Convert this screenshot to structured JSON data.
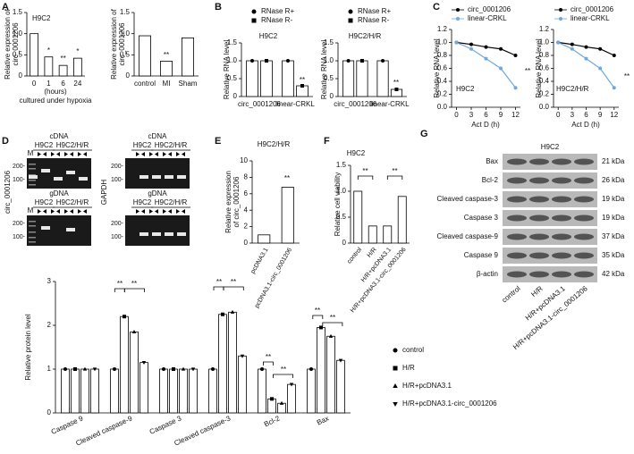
{
  "chart_data": [
    {
      "type": "bar",
      "panel": "A",
      "title": "H9C2",
      "ylabel": [
        "Relative expression of",
        "circ_0001206"
      ],
      "xlabel": [
        "(hours)",
        "cultured under hypoxia"
      ],
      "categories": [
        "0",
        "1",
        "6",
        "24"
      ],
      "values": [
        1.0,
        0.45,
        0.25,
        0.42
      ],
      "color": "#ffffff",
      "ylim": [
        0,
        1.5
      ],
      "yticks": [
        0,
        0.5,
        {
          "value": 1,
          "label": "1.0"
        },
        1.5
      ],
      "annotations": [
        "*",
        "**",
        "*"
      ]
    },
    {
      "type": "bar",
      "ylabel": [
        "Relative expression of",
        "circ_0001206"
      ],
      "categories": [
        "control",
        "MI",
        "Sham"
      ],
      "values": [
        0.95,
        0.35,
        0.9
      ],
      "color": "#ffffff",
      "ylim": [
        0,
        1.5
      ],
      "yticks": [
        0,
        0.5,
        {
          "value": 1,
          "label": "1.0"
        },
        1.5
      ],
      "annotations": [
        "**"
      ]
    },
    {
      "type": "bar",
      "panel": "B",
      "title": "H9C2",
      "ylabel": [
        "Relative RNA level"
      ],
      "categories": [
        "circ_0001206",
        "linear-CRKL"
      ],
      "series": [
        {
          "name": "RNase R+",
          "color": "#ffffff",
          "marker": "circle",
          "values": [
            1.0,
            1.0
          ]
        },
        {
          "name": "RNase R-",
          "color": "#ffffff",
          "marker": "square",
          "values": [
            1.0,
            0.3
          ]
        }
      ],
      "ylim": [
        0,
        1.5
      ],
      "yticks": [
        0,
        0.5,
        {
          "value": 1,
          "label": "1.0"
        },
        1.5
      ],
      "annotations": [
        "**"
      ]
    },
    {
      "type": "bar",
      "title": "H9C2/H/R",
      "ylabel": [
        "Relative RNA level"
      ],
      "categories": [
        "circ_0001206",
        "linear-CRKL"
      ],
      "series": [
        {
          "name": "RNase R+",
          "color": "#ffffff",
          "marker": "circle",
          "values": [
            1.0,
            1.0
          ]
        },
        {
          "name": "RNase R-",
          "color": "#ffffff",
          "marker": "square",
          "values": [
            1.0,
            0.2
          ]
        }
      ],
      "ylim": [
        0,
        1.5
      ],
      "yticks": [
        0,
        0.5,
        {
          "value": 1,
          "label": "1.0"
        },
        1.5
      ],
      "annotations": [
        "**"
      ]
    },
    {
      "type": "line",
      "panel": "C",
      "title": "H9C2",
      "ylabel": [
        "Relative RNA level"
      ],
      "xlabel": [
        "Act D (h)"
      ],
      "x": [
        0,
        3,
        6,
        9,
        12
      ],
      "series": [
        {
          "name": "circ_0001206",
          "color": "#000000",
          "values": [
            1.0,
            0.97,
            0.93,
            0.9,
            0.8
          ]
        },
        {
          "name": "linear-CRKL",
          "color": "#6fa8dc",
          "values": [
            1.0,
            0.9,
            0.75,
            0.6,
            0.3
          ]
        }
      ],
      "xlim": [
        -1,
        13
      ],
      "xticks": [
        0,
        3,
        6,
        9,
        12
      ],
      "ylim": [
        0,
        1.2
      ],
      "yticks": [
        {
          "value": 0,
          "label": "0.0"
        },
        0.2,
        0.4,
        0.6,
        0.8,
        {
          "value": 1,
          "label": "1.0"
        },
        1.2
      ],
      "annotations": [
        "**"
      ]
    },
    {
      "type": "line",
      "title": "H9C2/H/R",
      "ylabel": [
        "Relative RNA level"
      ],
      "xlabel": [
        "Act D (h)"
      ],
      "x": [
        0,
        3,
        6,
        9,
        12
      ],
      "series": [
        {
          "name": "circ_0001206",
          "color": "#000000",
          "values": [
            1.0,
            0.97,
            0.93,
            0.9,
            0.8
          ]
        },
        {
          "name": "linear-CRKL",
          "color": "#6fa8dc",
          "values": [
            1.0,
            0.9,
            0.75,
            0.6,
            0.3
          ]
        }
      ],
      "xlim": [
        -1,
        13
      ],
      "xticks": [
        0,
        3,
        6,
        9,
        12
      ],
      "ylim": [
        0,
        1.2
      ],
      "yticks": [
        {
          "value": 0,
          "label": "0.0"
        },
        0.2,
        0.4,
        0.6,
        0.8,
        {
          "value": 1,
          "label": "1.0"
        },
        1.2
      ],
      "annotations": [
        "**"
      ]
    },
    {
      "type": "bar",
      "panel": "E",
      "title": "H9C2/H/R",
      "ylabel": [
        "Relative expression",
        "of circ_0001206"
      ],
      "categories": [
        "pcDNA3.1",
        "pcDNA3.1-circ_0001206"
      ],
      "values": [
        1.0,
        6.8
      ],
      "color": "#ffffff",
      "ylim": [
        0,
        10
      ],
      "yticks": [
        0,
        2,
        4,
        6,
        8,
        10
      ],
      "annotations": [
        "**"
      ]
    },
    {
      "type": "bar",
      "panel": "F",
      "title": "H9C2",
      "ylabel": [
        "Relative cell viability"
      ],
      "categories": [
        "control",
        "H/R",
        "H/R+pcDNA3.1",
        "H/R+pcDNA3.1-circ_0001206"
      ],
      "values": [
        1.0,
        0.33,
        0.33,
        0.9
      ],
      "color": "#ffffff",
      "ylim": [
        0,
        1.5
      ],
      "yticks": [
        0,
        0.5,
        {
          "value": 1,
          "label": "1.0"
        },
        1.5
      ],
      "annotations": [
        "**",
        "**"
      ]
    },
    {
      "type": "bar",
      "ylabel": [
        "Relative protein level"
      ],
      "categories": [
        "Caspase 9",
        "Cleaved caspase-9",
        "Caspase 3",
        "Cleaved caspase-3",
        "Bcl-2",
        "Bax"
      ],
      "series": [
        {
          "name": "control",
          "color": "#ffffff",
          "marker": "circle",
          "values": [
            1,
            1,
            1,
            1,
            1,
            1
          ]
        },
        {
          "name": "H/R",
          "color": "#ffffff",
          "marker": "square",
          "values": [
            1,
            2.2,
            1,
            2.25,
            0.32,
            1.95
          ]
        },
        {
          "name": "H/R+pcDNA3.1",
          "color": "#ffffff",
          "marker": "triangle",
          "values": [
            1,
            1.85,
            1,
            2.3,
            0.22,
            1.75
          ]
        },
        {
          "name": "H/R+pcDNA3.1-circ_0001206",
          "color": "#ffffff",
          "marker": "triangle-down",
          "values": [
            1,
            1.15,
            1,
            1.3,
            0.65,
            1.2
          ]
        }
      ],
      "ylim": [
        0,
        3
      ],
      "yticks": [
        0,
        1,
        2,
        3
      ],
      "annotations": [
        "**",
        "**",
        "**",
        "**",
        "**",
        "**",
        "**",
        "**"
      ]
    }
  ],
  "gels": {
    "panel": "D",
    "gene": "circ_0001206",
    "ref": "GAPDH",
    "ladder": "M",
    "sizes": [
      "200-",
      "100-"
    ],
    "blocks": [
      {
        "title": "cDNA",
        "groups": [
          "H9C2",
          "H9C2/H/R"
        ]
      },
      {
        "title": "gDNA",
        "groups": [
          "H9C2",
          "H9C2/H/R"
        ]
      },
      {
        "title": "cDNA",
        "groups": [
          "H9C2",
          "H9C2/H/R"
        ]
      },
      {
        "title": "gDNA",
        "groups": [
          "H9C2",
          "H9C2/H/R"
        ]
      }
    ]
  },
  "blot": {
    "panel": "G",
    "title": "H9C2",
    "proteins": [
      "Bax",
      "Bcl-2",
      "Cleaved caspase-3",
      "Caspase 3",
      "Cleaved caspase-9",
      "Caspase 9",
      "β-actin"
    ],
    "sizes": [
      "21 kDa",
      "26 kDa",
      "19 kDa",
      "19 kDa",
      "37 kDa",
      "35 kDa",
      "42 kDa"
    ],
    "lanes": [
      "control",
      "H/R",
      "H/R+pcDNA3.1",
      "H/R+pcDNA3.1-circ_0001206"
    ]
  }
}
